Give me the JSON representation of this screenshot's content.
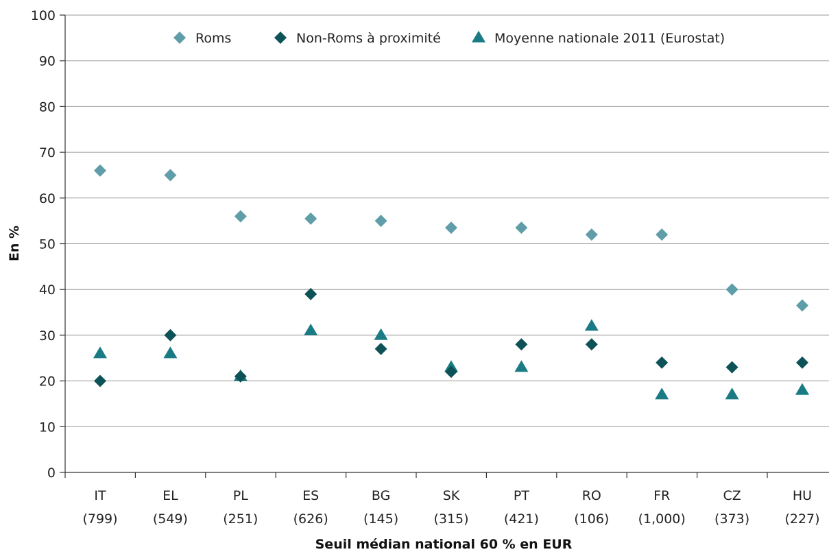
{
  "chart_data": {
    "type": "scatter",
    "xlabel": "Seuil médian national 60 % en EUR",
    "ylabel": "En %",
    "ylim": [
      0,
      100
    ],
    "yticks": [
      0,
      10,
      20,
      30,
      40,
      50,
      60,
      70,
      80,
      90,
      100
    ],
    "grid": true,
    "legend_position": "top",
    "categories": [
      "IT",
      "EL",
      "PL",
      "ES",
      "BG",
      "SK",
      "PT",
      "RO",
      "FR",
      "CZ",
      "HU"
    ],
    "category_sublabels": [
      "(799)",
      "(549)",
      "(251)",
      "(626)",
      "(145)",
      "(315)",
      "(421)",
      "(106)",
      "(1,000)",
      "(373)",
      "(227)"
    ],
    "series": [
      {
        "name": "Roms",
        "marker": "diamond",
        "color": "#5f9ea8",
        "values": [
          66,
          65,
          56,
          55.5,
          55,
          53.5,
          53.5,
          52,
          52,
          40,
          36.5
        ]
      },
      {
        "name": "Non-Roms à proximité",
        "marker": "diamond",
        "color": "#0d5257",
        "values": [
          20,
          30,
          21,
          39,
          27,
          22,
          28,
          28,
          24,
          23,
          24
        ]
      },
      {
        "name": "Moyenne nationale 2011 (Eurostat)",
        "marker": "triangle",
        "color": "#1a7b85",
        "values": [
          26,
          26,
          21,
          31,
          30,
          23,
          23,
          32,
          17,
          17,
          18
        ]
      }
    ]
  }
}
